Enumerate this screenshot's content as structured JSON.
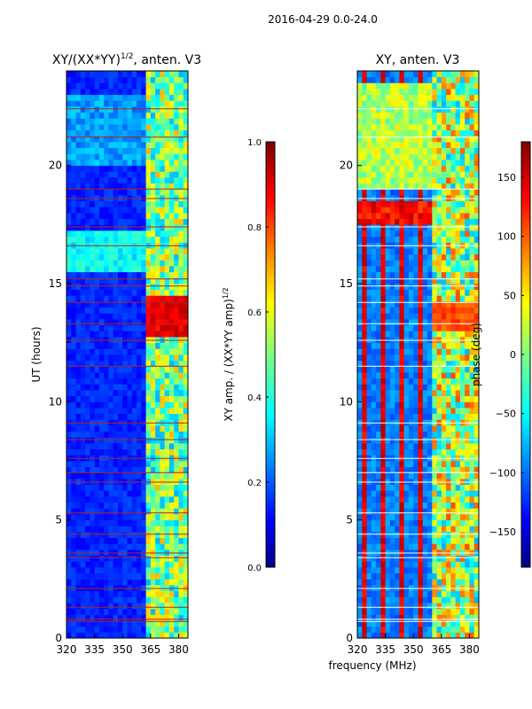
{
  "figure_title": "2016-04-29 0.0-24.0",
  "colors": {
    "jet": [
      "#00007f",
      "#0000ff",
      "#007fff",
      "#00ffff",
      "#7fff7f",
      "#ffff00",
      "#ff7f00",
      "#ff0000",
      "#7f0000"
    ],
    "flag_red": "#b22222",
    "flag_white": "#ffffff",
    "flag_black": "#000000"
  },
  "chart_data": [
    {
      "type": "heatmap",
      "title_main": "XY/(XX*YY)",
      "title_exp": "1/2",
      "title_suffix": ", anten. V3",
      "xlabel": "",
      "ylabel": "UT (hours)",
      "xlim": [
        320,
        385
      ],
      "ylim": [
        0,
        24
      ],
      "x_ticks": [
        320,
        335,
        350,
        365,
        380
      ],
      "x_tick_labels": [
        "320",
        "335",
        "350",
        "365",
        "380"
      ],
      "y_ticks": [
        0,
        5,
        10,
        15,
        20
      ],
      "y_tick_labels": [
        "0",
        "5",
        "10",
        "15",
        "20"
      ],
      "colorbar": {
        "label_main": "XY amp. / (XX*YY amp)",
        "label_exp": "1/2",
        "range": [
          0.0,
          1.0
        ],
        "ticks": [
          0.0,
          0.2,
          0.4,
          0.6,
          0.8,
          1.0
        ],
        "tick_labels": [
          "0.0",
          "0.2",
          "0.4",
          "0.6",
          "0.8",
          "1.0"
        ]
      }
    },
    {
      "type": "heatmap",
      "title_main": "XY, anten. V3",
      "title_exp": "",
      "title_suffix": "",
      "xlabel": "frequency (MHz)",
      "ylabel": "",
      "xlim": [
        320,
        385
      ],
      "ylim": [
        0,
        24
      ],
      "x_ticks": [
        320,
        335,
        350,
        365,
        380
      ],
      "x_tick_labels": [
        "320",
        "335",
        "350",
        "365",
        "380"
      ],
      "y_ticks": [
        0,
        5,
        10,
        15,
        20
      ],
      "y_tick_labels": [
        "0",
        "5",
        "10",
        "15",
        "20"
      ],
      "colorbar": {
        "label_main": "phase (deg)",
        "label_exp": "",
        "range": [
          -180,
          180
        ],
        "ticks": [
          -150,
          -100,
          -50,
          0,
          50,
          100,
          150
        ],
        "tick_labels": [
          "−150",
          "−100",
          "−50",
          "0",
          "50",
          "100",
          "150"
        ]
      }
    }
  ]
}
